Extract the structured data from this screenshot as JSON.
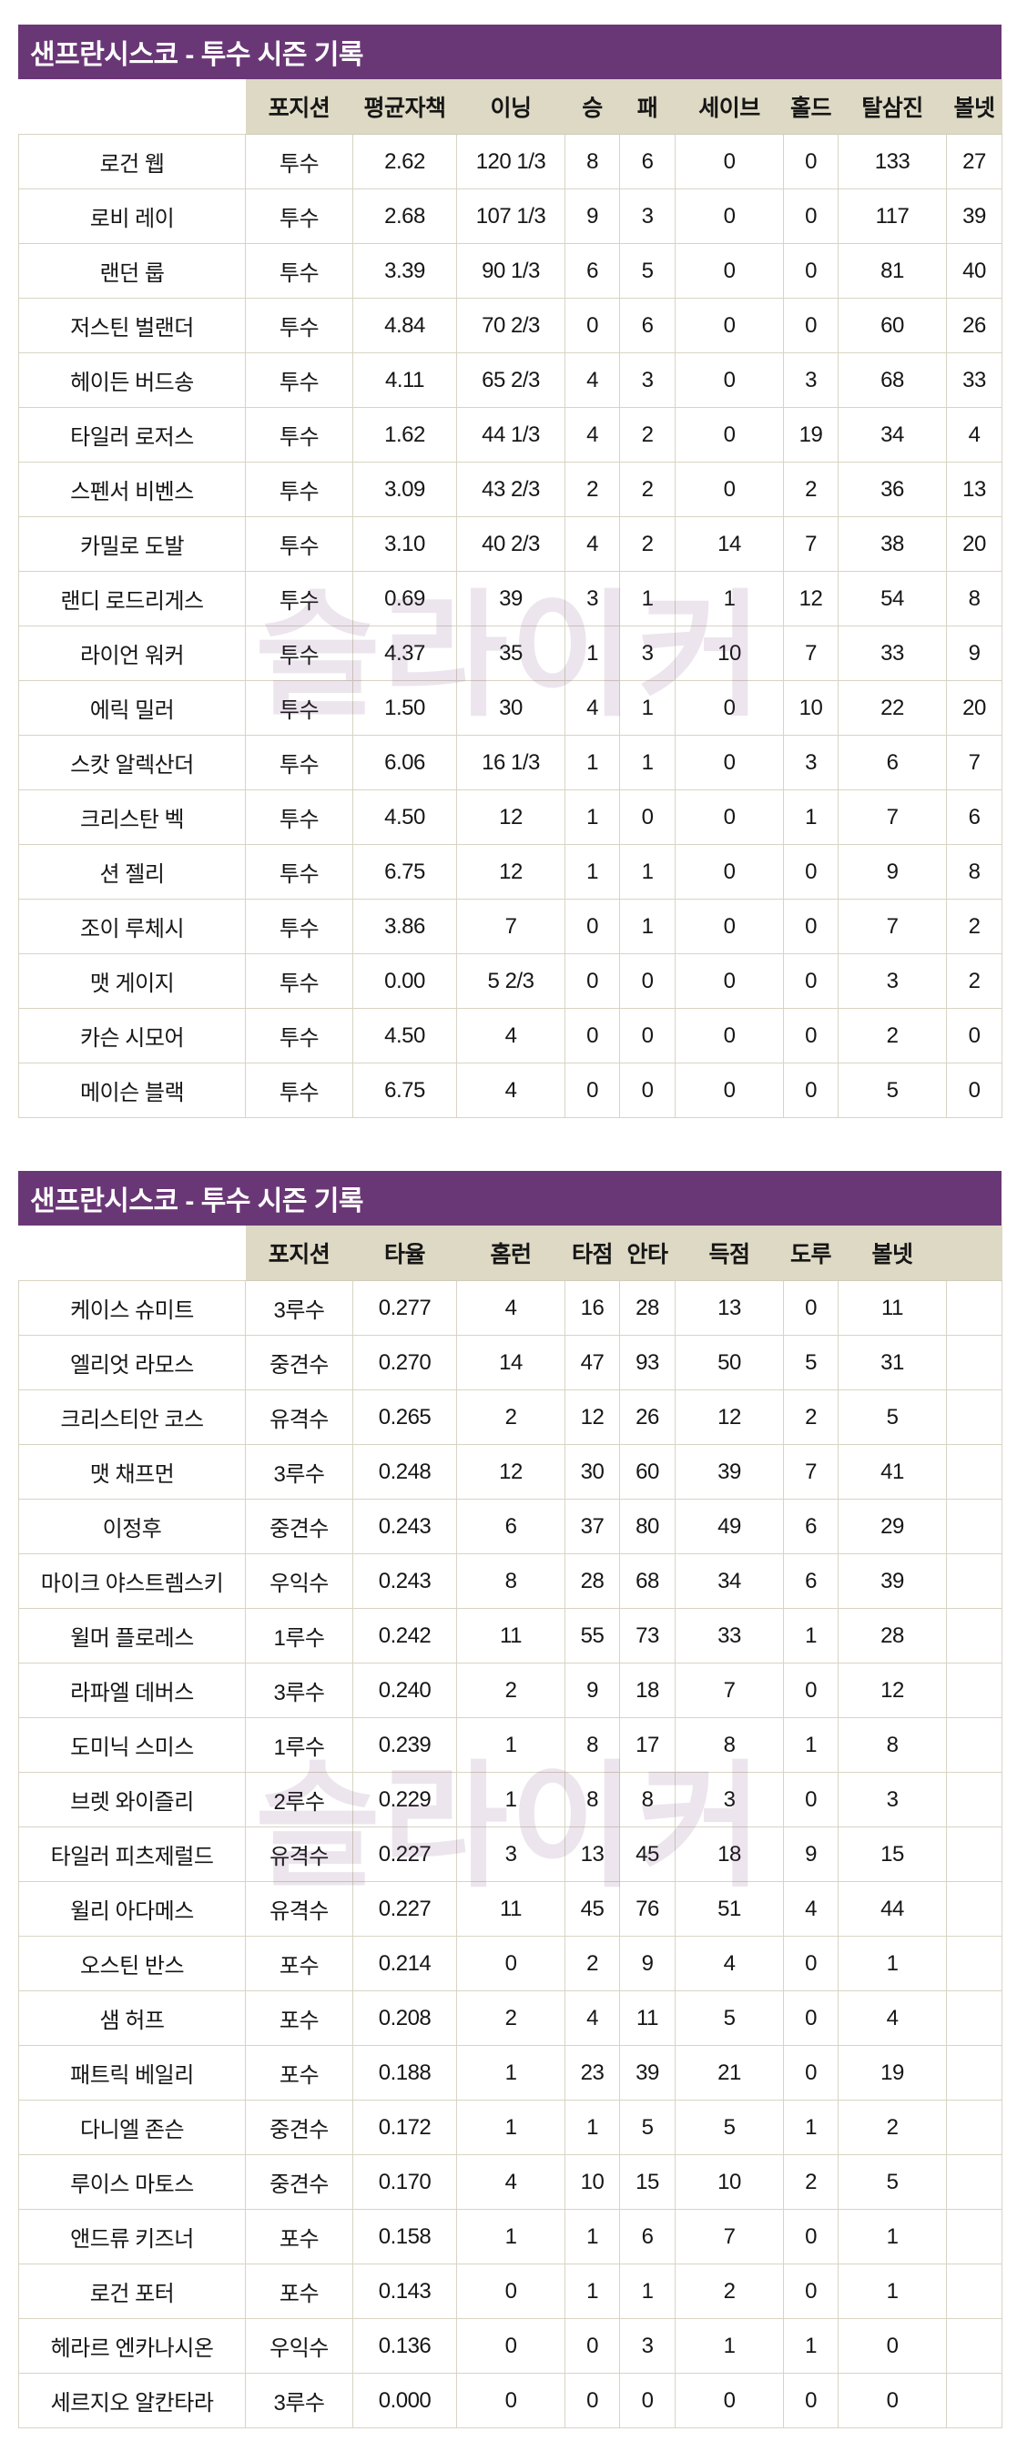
{
  "watermark": {
    "text": "슬라이커"
  },
  "colors": {
    "title_bar_bg": "#6a3776",
    "title_text": "#ffffff",
    "header_bg": "#ddd9c4",
    "cell_bg": "#ffffff",
    "grid_line": "#d8d4c3",
    "watermark_tint": "#6a3776"
  },
  "tables": [
    {
      "title": "샌프란시스코 - 투수 시즌 기록",
      "columns": [
        "포지션",
        "평균자책",
        "이닝",
        "승",
        "패",
        "세이브",
        "홀드",
        "탈삼진",
        "볼넷"
      ],
      "rows": [
        {
          "name": "로건 웹",
          "values": [
            "투수",
            "2.62",
            "120 1/3",
            "8",
            "6",
            "0",
            "0",
            "133",
            "27"
          ]
        },
        {
          "name": "로비 레이",
          "values": [
            "투수",
            "2.68",
            "107 1/3",
            "9",
            "3",
            "0",
            "0",
            "117",
            "39"
          ]
        },
        {
          "name": "랜던 룹",
          "values": [
            "투수",
            "3.39",
            "90 1/3",
            "6",
            "5",
            "0",
            "0",
            "81",
            "40"
          ]
        },
        {
          "name": "저스틴 벌랜더",
          "values": [
            "투수",
            "4.84",
            "70 2/3",
            "0",
            "6",
            "0",
            "0",
            "60",
            "26"
          ]
        },
        {
          "name": "헤이든 버드송",
          "values": [
            "투수",
            "4.11",
            "65 2/3",
            "4",
            "3",
            "0",
            "3",
            "68",
            "33"
          ]
        },
        {
          "name": "타일러 로저스",
          "values": [
            "투수",
            "1.62",
            "44 1/3",
            "4",
            "2",
            "0",
            "19",
            "34",
            "4"
          ]
        },
        {
          "name": "스펜서 비벤스",
          "values": [
            "투수",
            "3.09",
            "43 2/3",
            "2",
            "2",
            "0",
            "2",
            "36",
            "13"
          ]
        },
        {
          "name": "카밀로 도발",
          "values": [
            "투수",
            "3.10",
            "40 2/3",
            "4",
            "2",
            "14",
            "7",
            "38",
            "20"
          ]
        },
        {
          "name": "랜디 로드리게스",
          "values": [
            "투수",
            "0.69",
            "39",
            "3",
            "1",
            "1",
            "12",
            "54",
            "8"
          ]
        },
        {
          "name": "라이언 워커",
          "values": [
            "투수",
            "4.37",
            "35",
            "1",
            "3",
            "10",
            "7",
            "33",
            "9"
          ]
        },
        {
          "name": "에릭 밀러",
          "values": [
            "투수",
            "1.50",
            "30",
            "4",
            "1",
            "0",
            "10",
            "22",
            "20"
          ]
        },
        {
          "name": "스캇 알렉산더",
          "values": [
            "투수",
            "6.06",
            "16 1/3",
            "1",
            "1",
            "0",
            "3",
            "6",
            "7"
          ]
        },
        {
          "name": "크리스탄 벡",
          "values": [
            "투수",
            "4.50",
            "12",
            "1",
            "0",
            "0",
            "1",
            "7",
            "6"
          ]
        },
        {
          "name": "션 젤리",
          "values": [
            "투수",
            "6.75",
            "12",
            "1",
            "1",
            "0",
            "0",
            "9",
            "8"
          ]
        },
        {
          "name": "조이 루체시",
          "values": [
            "투수",
            "3.86",
            "7",
            "0",
            "1",
            "0",
            "0",
            "7",
            "2"
          ]
        },
        {
          "name": "맷 게이지",
          "values": [
            "투수",
            "0.00",
            "5 2/3",
            "0",
            "0",
            "0",
            "0",
            "3",
            "2"
          ]
        },
        {
          "name": "카슨 시모어",
          "values": [
            "투수",
            "4.50",
            "4",
            "0",
            "0",
            "0",
            "0",
            "2",
            "0"
          ]
        },
        {
          "name": "메이슨 블랙",
          "values": [
            "투수",
            "6.75",
            "4",
            "0",
            "0",
            "0",
            "0",
            "5",
            "0"
          ]
        }
      ]
    },
    {
      "title": "샌프란시스코 - 투수 시즌 기록",
      "columns": [
        "포지션",
        "타율",
        "홈런",
        "타점",
        "안타",
        "득점",
        "도루",
        "볼넷",
        ""
      ],
      "rows": [
        {
          "name": "케이스 슈미트",
          "values": [
            "3루수",
            "0.277",
            "4",
            "16",
            "28",
            "13",
            "0",
            "11",
            ""
          ]
        },
        {
          "name": "엘리엇 라모스",
          "values": [
            "중견수",
            "0.270",
            "14",
            "47",
            "93",
            "50",
            "5",
            "31",
            ""
          ]
        },
        {
          "name": "크리스티안 코스",
          "values": [
            "유격수",
            "0.265",
            "2",
            "12",
            "26",
            "12",
            "2",
            "5",
            ""
          ]
        },
        {
          "name": "맷 채프먼",
          "values": [
            "3루수",
            "0.248",
            "12",
            "30",
            "60",
            "39",
            "7",
            "41",
            ""
          ]
        },
        {
          "name": "이정후",
          "values": [
            "중견수",
            "0.243",
            "6",
            "37",
            "80",
            "49",
            "6",
            "29",
            ""
          ]
        },
        {
          "name": "마이크 야스트렘스키",
          "values": [
            "우익수",
            "0.243",
            "8",
            "28",
            "68",
            "34",
            "6",
            "39",
            ""
          ]
        },
        {
          "name": "윌머 플로레스",
          "values": [
            "1루수",
            "0.242",
            "11",
            "55",
            "73",
            "33",
            "1",
            "28",
            ""
          ]
        },
        {
          "name": "라파엘 데버스",
          "values": [
            "3루수",
            "0.240",
            "2",
            "9",
            "18",
            "7",
            "0",
            "12",
            ""
          ]
        },
        {
          "name": "도미닉 스미스",
          "values": [
            "1루수",
            "0.239",
            "1",
            "8",
            "17",
            "8",
            "1",
            "8",
            ""
          ]
        },
        {
          "name": "브렛 와이즐리",
          "values": [
            "2루수",
            "0.229",
            "1",
            "8",
            "8",
            "3",
            "0",
            "3",
            ""
          ]
        },
        {
          "name": "타일러 피츠제럴드",
          "values": [
            "유격수",
            "0.227",
            "3",
            "13",
            "45",
            "18",
            "9",
            "15",
            ""
          ]
        },
        {
          "name": "윌리 아다메스",
          "values": [
            "유격수",
            "0.227",
            "11",
            "45",
            "76",
            "51",
            "4",
            "44",
            ""
          ]
        },
        {
          "name": "오스틴 반스",
          "values": [
            "포수",
            "0.214",
            "0",
            "2",
            "9",
            "4",
            "0",
            "1",
            ""
          ]
        },
        {
          "name": "샘 허프",
          "values": [
            "포수",
            "0.208",
            "2",
            "4",
            "11",
            "5",
            "0",
            "4",
            ""
          ]
        },
        {
          "name": "패트릭 베일리",
          "values": [
            "포수",
            "0.188",
            "1",
            "23",
            "39",
            "21",
            "0",
            "19",
            ""
          ]
        },
        {
          "name": "다니엘 존슨",
          "values": [
            "중견수",
            "0.172",
            "1",
            "1",
            "5",
            "5",
            "1",
            "2",
            ""
          ]
        },
        {
          "name": "루이스 마토스",
          "values": [
            "중견수",
            "0.170",
            "4",
            "10",
            "15",
            "10",
            "2",
            "5",
            ""
          ]
        },
        {
          "name": "앤드류 키즈너",
          "values": [
            "포수",
            "0.158",
            "1",
            "1",
            "6",
            "7",
            "0",
            "1",
            ""
          ]
        },
        {
          "name": "로건 포터",
          "values": [
            "포수",
            "0.143",
            "0",
            "1",
            "1",
            "2",
            "0",
            "1",
            ""
          ]
        },
        {
          "name": "헤라르 엔카나시온",
          "values": [
            "우익수",
            "0.136",
            "0",
            "0",
            "3",
            "1",
            "1",
            "0",
            ""
          ]
        },
        {
          "name": "세르지오 알칸타라",
          "values": [
            "3루수",
            "0.000",
            "0",
            "0",
            "0",
            "0",
            "0",
            "0",
            ""
          ]
        }
      ]
    }
  ]
}
